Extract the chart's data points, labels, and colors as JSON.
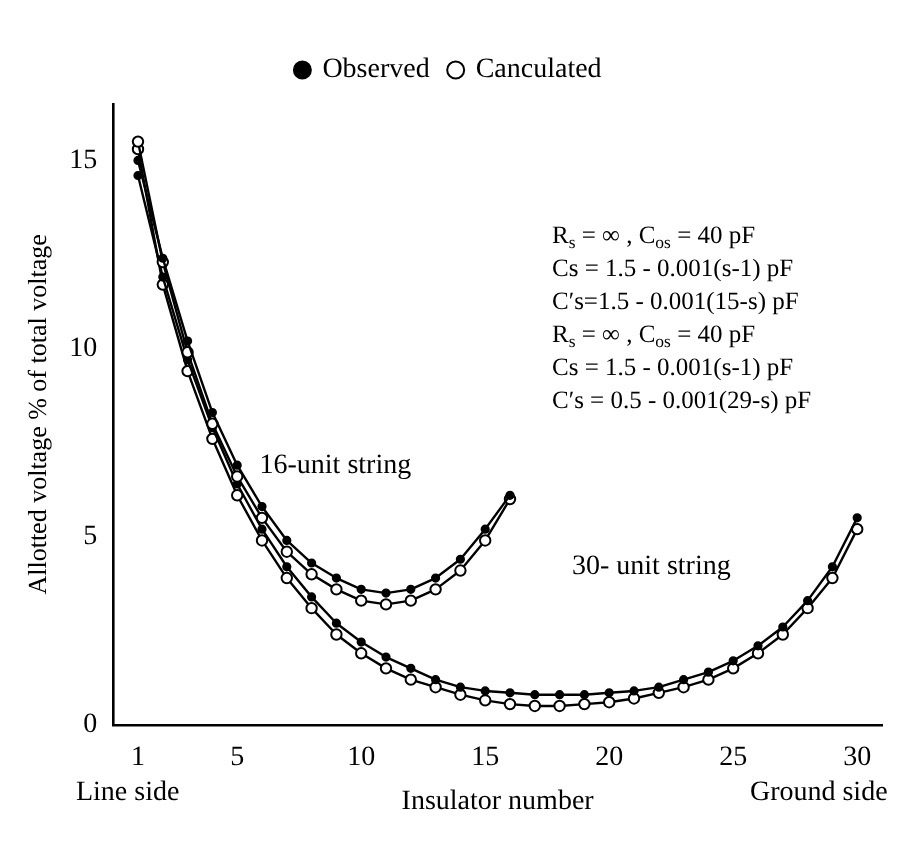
{
  "chart_data": {
    "type": "line",
    "xlabel": "Insulator number",
    "ylabel": "Allotted voltage % of total voltage",
    "xlim": [
      0,
      31
    ],
    "xticks": [
      1,
      5,
      10,
      15,
      20,
      25,
      30
    ],
    "ylim": [
      0,
      16.5
    ],
    "yticks": [
      0,
      5,
      10,
      15
    ],
    "grid": false,
    "legend": "top",
    "marker": "circle",
    "line_style": "solid",
    "series": [
      {
        "name": "Observed",
        "color": "#000000",
        "x": [
          1,
          2,
          3,
          4,
          5,
          6,
          7,
          8,
          9,
          10,
          11,
          12,
          13,
          14,
          15,
          16
        ],
        "values": [
          15.0,
          12.4,
          10.2,
          8.3,
          6.9,
          5.8,
          4.9,
          4.3,
          3.9,
          3.6,
          3.5,
          3.6,
          3.9,
          4.4,
          5.2,
          6.1
        ]
      },
      {
        "name": "Canculated",
        "color": "#000000",
        "x": [
          1,
          2,
          3,
          4,
          5,
          6,
          7,
          8,
          9,
          10,
          11,
          12,
          13,
          14,
          15,
          16
        ],
        "values": [
          15.5,
          12.3,
          9.9,
          8.0,
          6.6,
          5.5,
          4.6,
          4.0,
          3.6,
          3.3,
          3.2,
          3.3,
          3.6,
          4.1,
          4.9,
          6.0
        ]
      },
      {
        "color": "#000000",
        "x": [
          1,
          2,
          3,
          4,
          5,
          6,
          7,
          8,
          9,
          10,
          11,
          12,
          13,
          14,
          15,
          16,
          17,
          18,
          19,
          20,
          21,
          22,
          23,
          24,
          25,
          26,
          27,
          28,
          29,
          30
        ],
        "values": [
          14.6,
          11.9,
          9.7,
          7.9,
          6.4,
          5.2,
          4.2,
          3.4,
          2.7,
          2.2,
          1.8,
          1.5,
          1.2,
          1.0,
          0.9,
          0.85,
          0.8,
          0.8,
          0.8,
          0.85,
          0.9,
          1.0,
          1.2,
          1.4,
          1.7,
          2.1,
          2.6,
          3.3,
          4.2,
          5.5
        ]
      },
      {
        "color": "#000000",
        "x": [
          1,
          2,
          3,
          4,
          5,
          6,
          7,
          8,
          9,
          10,
          11,
          12,
          13,
          14,
          15,
          16,
          17,
          18,
          19,
          20,
          21,
          22,
          23,
          24,
          25,
          26,
          27,
          28,
          29,
          30
        ],
        "values": [
          15.3,
          11.7,
          9.4,
          7.6,
          6.1,
          4.9,
          3.9,
          3.1,
          2.4,
          1.9,
          1.5,
          1.2,
          1.0,
          0.8,
          0.65,
          0.55,
          0.5,
          0.5,
          0.55,
          0.6,
          0.7,
          0.85,
          1.0,
          1.2,
          1.5,
          1.9,
          2.4,
          3.1,
          3.9,
          5.2
        ]
      }
    ],
    "annotations": [
      "Line side",
      "Ground side",
      "R$_{s}$ = ∞ , C$_{os}$ = 40 pF",
      "Cs = 1.5 - 0.001(s-1) pF",
      "C′s=1.5 - 0.001(15-s) pF",
      "R$_{s}$ = ∞ , C$_{os}$ = 40 pF",
      "Cs = 1.5 - 0.001(s-1) pF",
      "C′s = 0.5 - 0.001(29-s) pF",
      "16-unit string",
      "30- unit string"
    ]
  }
}
